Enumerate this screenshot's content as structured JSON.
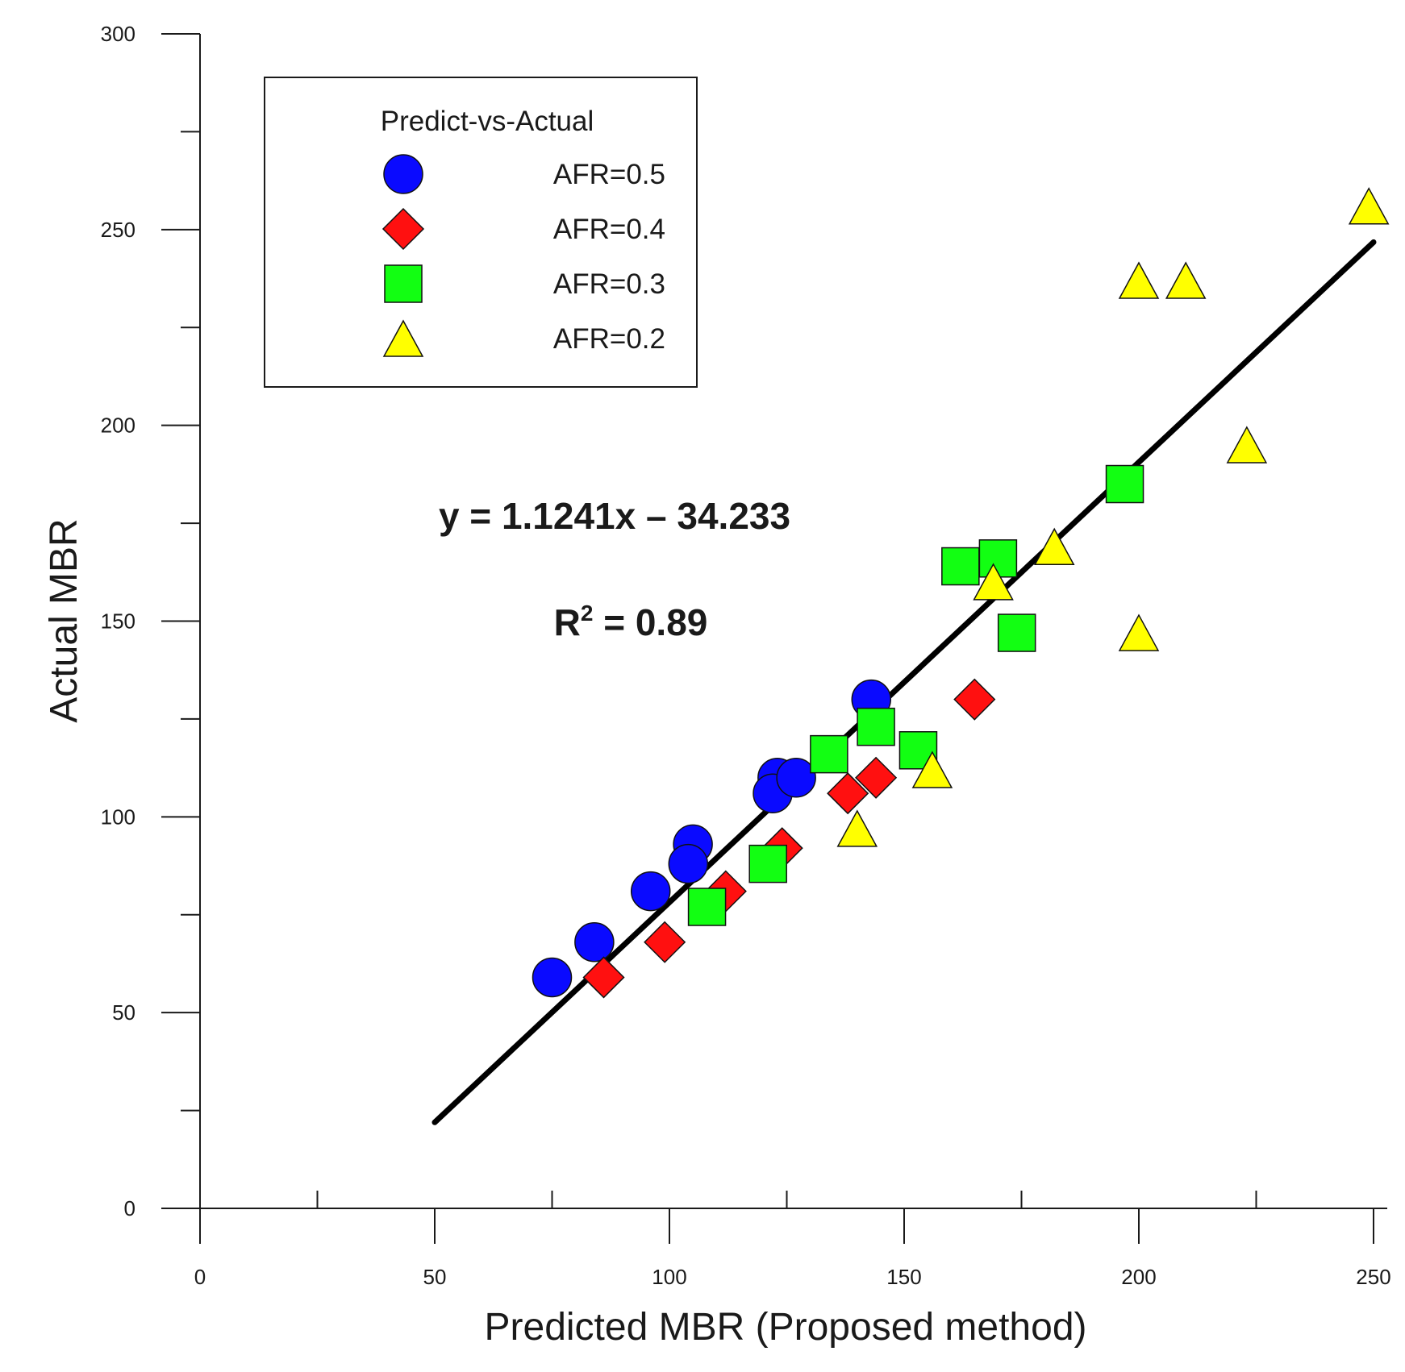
{
  "chart_data": {
    "type": "scatter",
    "title": "",
    "xlabel": "Predicted MBR (Proposed method)",
    "ylabel": "Actual MBR",
    "xlim": [
      0,
      250
    ],
    "ylim": [
      0,
      300
    ],
    "x_ticks": [
      "0",
      "50",
      "100",
      "150",
      "200",
      "250"
    ],
    "y_ticks": [
      "0",
      "50",
      "100",
      "150",
      "200",
      "250",
      "300"
    ],
    "legend": {
      "title": "Predict-vs-Actual",
      "position": "top-left"
    },
    "series": [
      {
        "name": "AFR=0.5",
        "marker": "circle",
        "color": "#0a0aff",
        "points": [
          [
            75,
            59
          ],
          [
            84,
            68
          ],
          [
            96,
            81
          ],
          [
            105,
            93
          ],
          [
            104,
            88
          ],
          [
            123,
            110
          ],
          [
            122,
            106
          ],
          [
            127,
            110
          ],
          [
            143,
            130
          ]
        ]
      },
      {
        "name": "AFR=0.4",
        "marker": "diamond",
        "color": "#ff1010",
        "points": [
          [
            86,
            59
          ],
          [
            99,
            68
          ],
          [
            112,
            81
          ],
          [
            124,
            92
          ],
          [
            138,
            106
          ],
          [
            144,
            110
          ],
          [
            165,
            130
          ]
        ]
      },
      {
        "name": "AFR=0.3",
        "marker": "square",
        "color": "#12ff12",
        "points": [
          [
            108,
            77
          ],
          [
            121,
            88
          ],
          [
            134,
            116
          ],
          [
            144,
            123
          ],
          [
            153,
            117
          ],
          [
            162,
            164
          ],
          [
            170,
            166
          ],
          [
            174,
            147
          ],
          [
            197,
            185
          ]
        ]
      },
      {
        "name": "AFR=0.2",
        "marker": "triangle",
        "color": "#ffff00",
        "points": [
          [
            140,
            97
          ],
          [
            156,
            112
          ],
          [
            169,
            160
          ],
          [
            182,
            169
          ],
          [
            200,
            147
          ],
          [
            200,
            237
          ],
          [
            210,
            237
          ],
          [
            223,
            195
          ],
          [
            249,
            256
          ]
        ]
      }
    ],
    "fit_line": {
      "x": [
        50,
        250
      ],
      "y": [
        21.97,
        246.79
      ],
      "color": "#000000"
    },
    "annotations": {
      "equation": "y = 1.1241x – 34.233",
      "r2_prefix": "R",
      "r2_sup": "2",
      "r2_rest": " = 0.89"
    }
  }
}
